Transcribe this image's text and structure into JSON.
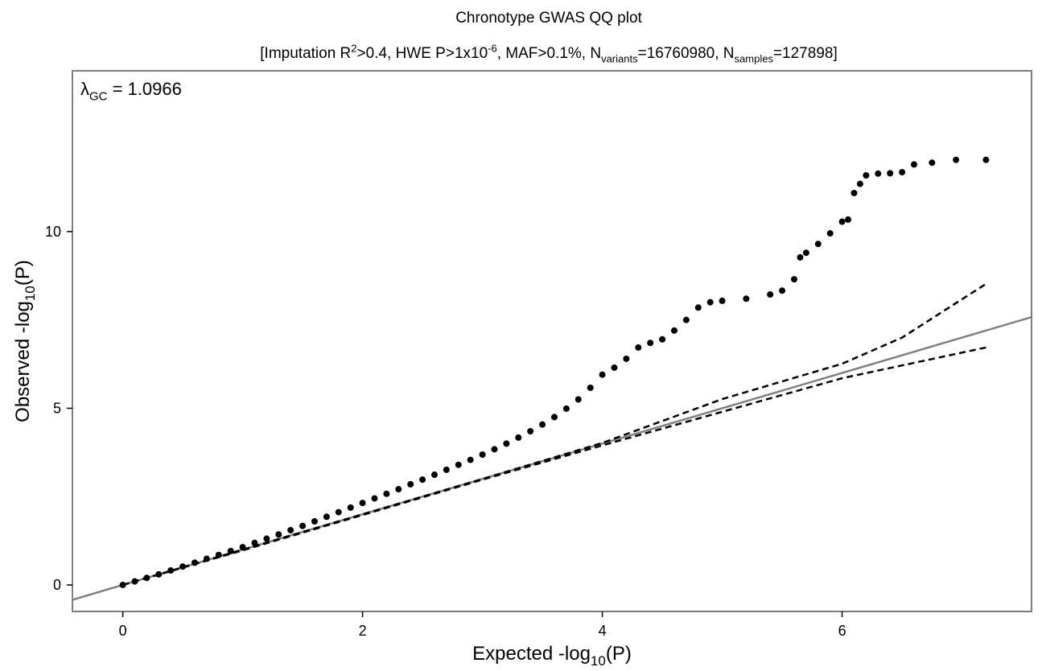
{
  "chart_data": {
    "type": "scatter",
    "title": "Chronotype GWAS QQ plot",
    "subtitle": [
      {
        "text": "[Imputation R",
        "shift": "normal"
      },
      {
        "text": "2",
        "shift": "super"
      },
      {
        "text": ">0.4, HWE P>1x10",
        "shift": "normal"
      },
      {
        "text": "-6",
        "shift": "super"
      },
      {
        "text": ", MAF>0.1%, N",
        "shift": "normal"
      },
      {
        "text": "variants",
        "shift": "sub"
      },
      {
        "text": "=16760980, N",
        "shift": "normal"
      },
      {
        "text": "samples",
        "shift": "sub"
      },
      {
        "text": "=127898]",
        "shift": "normal"
      }
    ],
    "annotation": [
      {
        "text": "λ",
        "shift": "normal"
      },
      {
        "text": "GC",
        "shift": "sub"
      },
      {
        "text": " = 1.0966",
        "shift": "normal"
      }
    ],
    "x_label": [
      {
        "text": "Expected -log",
        "shift": "normal"
      },
      {
        "text": "10",
        "shift": "sub"
      },
      {
        "text": "(P)",
        "shift": "normal"
      }
    ],
    "y_label": [
      {
        "text": "Observed -log",
        "shift": "normal"
      },
      {
        "text": "10",
        "shift": "sub"
      },
      {
        "text": "(P)",
        "shift": "normal"
      }
    ],
    "xlim": [
      -0.42,
      7.58
    ],
    "ylim": [
      -0.75,
      14.55
    ],
    "xticks": [
      0,
      2,
      4,
      6
    ],
    "yticks": [
      0,
      5,
      10
    ],
    "grid": false,
    "reference_line": {
      "slope": 1,
      "intercept": 0,
      "color": "#808080"
    },
    "bands": [
      {
        "color": "#000000",
        "x": [
          0,
          1,
          2,
          3,
          4,
          5,
          6,
          6.5,
          7.2
        ],
        "y": [
          0,
          1,
          2,
          3,
          4.02,
          5.26,
          6.26,
          7.0,
          8.52
        ]
      },
      {
        "color": "#000000",
        "x": [
          0,
          1,
          2,
          3,
          4,
          5,
          6,
          7.2
        ],
        "y": [
          0,
          0.98,
          1.98,
          2.98,
          3.95,
          4.9,
          5.85,
          6.72
        ]
      }
    ],
    "series": [
      {
        "color": "#000000",
        "x": [
          0,
          0.1,
          0.2,
          0.3,
          0.4,
          0.5,
          0.6,
          0.7,
          0.8,
          0.9,
          1,
          1.1,
          1.2,
          1.3,
          1.4,
          1.5,
          1.6,
          1.7,
          1.8,
          1.9,
          2,
          2.1,
          2.2,
          2.3,
          2.4,
          2.5,
          2.6,
          2.7,
          2.8,
          2.9,
          3,
          3.1,
          3.2,
          3.3,
          3.4,
          3.5,
          3.6,
          3.7,
          3.8,
          3.9,
          4,
          4.1,
          4.2,
          4.3,
          4.4,
          4.5,
          4.6,
          4.7,
          4.8,
          4.9,
          5,
          5.2,
          5.4,
          5.5,
          5.6,
          5.65,
          5.7,
          5.8,
          5.9,
          6,
          6.05,
          6.1,
          6.15,
          6.2,
          6.3,
          6.4,
          6.5,
          6.6,
          6.75,
          6.95,
          7.2
        ],
        "y": [
          0,
          0.1,
          0.2,
          0.3,
          0.41,
          0.52,
          0.63,
          0.74,
          0.85,
          0.96,
          1.07,
          1.19,
          1.31,
          1.43,
          1.55,
          1.67,
          1.8,
          1.93,
          2.06,
          2.19,
          2.32,
          2.45,
          2.58,
          2.71,
          2.85,
          2.98,
          3.12,
          3.26,
          3.4,
          3.54,
          3.69,
          3.84,
          4.0,
          4.17,
          4.35,
          4.54,
          4.75,
          4.99,
          5.25,
          5.58,
          5.95,
          6.15,
          6.4,
          6.72,
          6.85,
          6.95,
          7.2,
          7.5,
          7.85,
          8.0,
          8.04,
          8.1,
          8.22,
          8.33,
          8.65,
          9.27,
          9.4,
          9.65,
          9.95,
          10.28,
          10.34,
          11.09,
          11.35,
          11.59,
          11.64,
          11.65,
          11.68,
          11.9,
          11.95,
          12.03,
          12.03
        ]
      }
    ]
  }
}
